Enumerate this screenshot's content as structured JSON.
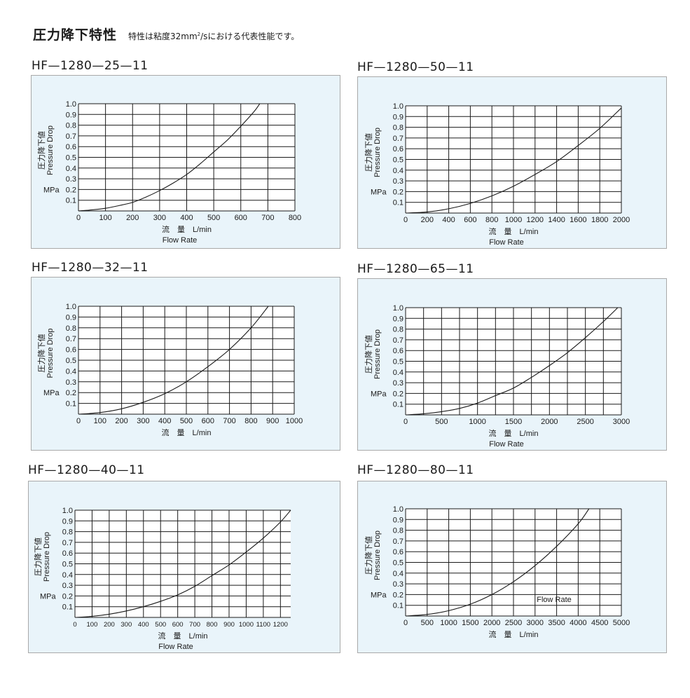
{
  "header": {
    "title": "圧力降下特性",
    "subtitle_pre": "特性は粘度32mm",
    "subtitle_sup": "2",
    "subtitle_post": "/sにおける代表性能です。"
  },
  "chart_data": [
    {
      "type": "line",
      "title": "HF—1280—25—11",
      "xlabel_jp": "流　量　L/min",
      "xlabel_en": "Flow Rate",
      "ylabel_jp": "圧力降下値",
      "ylabel_en": "Pressure Drop",
      "yunit": "MPa",
      "xlim": [
        0,
        800
      ],
      "ylim": [
        0,
        1.0
      ],
      "xticks": [
        0,
        100,
        200,
        300,
        400,
        500,
        600,
        700,
        800
      ],
      "xtick_labels": [
        "0",
        "100",
        "200",
        "300",
        "400",
        "500",
        "600",
        "700",
        "800"
      ],
      "yticks": [
        0.1,
        0.2,
        0.3,
        0.4,
        0.5,
        0.6,
        0.7,
        0.8,
        0.9,
        1.0
      ],
      "ytick_labels": [
        "0.1",
        "0.2",
        "0.3",
        "0.4",
        "0.5",
        "0.6",
        "0.7",
        "0.8",
        "0.9",
        "1.0"
      ],
      "x_grid": [
        0,
        100,
        200,
        300,
        400,
        500,
        600,
        700,
        800
      ],
      "series": [
        {
          "x": [
            0,
            50,
            100,
            150,
            200,
            250,
            300,
            350,
            400,
            450,
            500,
            550,
            600,
            650,
            670
          ],
          "y": [
            0,
            0.01,
            0.025,
            0.05,
            0.08,
            0.13,
            0.19,
            0.26,
            0.34,
            0.44,
            0.55,
            0.66,
            0.79,
            0.93,
            1.0
          ]
        }
      ]
    },
    {
      "type": "line",
      "title": "HF—1280—50—11",
      "xlabel_jp": "流　量　L/min",
      "xlabel_en": "Flow Rate",
      "ylabel_jp": "圧力降下値",
      "ylabel_en": "Pressure Drop",
      "yunit": "MPa",
      "xlim": [
        0,
        2000
      ],
      "ylim": [
        0,
        1.0
      ],
      "xticks": [
        0,
        200,
        400,
        600,
        800,
        1000,
        1200,
        1400,
        1600,
        1800,
        2000
      ],
      "xtick_labels": [
        "0",
        "200",
        "400",
        "600",
        "800",
        "1000",
        "1200",
        "1400",
        "1600",
        "1800",
        "2000"
      ],
      "yticks": [
        0.1,
        0.2,
        0.3,
        0.4,
        0.5,
        0.6,
        0.7,
        0.8,
        0.9,
        1.0
      ],
      "ytick_labels": [
        "0.1",
        "0.2",
        "0.3",
        "0.4",
        "0.5",
        "0.6",
        "0.7",
        "0.8",
        "0.9",
        "1.0"
      ],
      "x_grid": [
        0,
        200,
        400,
        600,
        800,
        1000,
        1200,
        1400,
        1600,
        1800,
        2000
      ],
      "series": [
        {
          "x": [
            0,
            200,
            400,
            600,
            800,
            1000,
            1200,
            1400,
            1600,
            1800,
            2000
          ],
          "y": [
            0,
            0.01,
            0.04,
            0.09,
            0.16,
            0.25,
            0.36,
            0.48,
            0.63,
            0.79,
            0.98
          ]
        }
      ]
    },
    {
      "type": "line",
      "title": "HF—1280—32—11",
      "xlabel_jp": "流　量　L/min",
      "xlabel_en": "",
      "ylabel_jp": "圧力降下値",
      "ylabel_en": "Pressure Drop",
      "yunit": "MPa",
      "xlim": [
        0,
        1000
      ],
      "ylim": [
        0,
        1.0
      ],
      "xticks": [
        0,
        100,
        200,
        300,
        400,
        500,
        600,
        700,
        800,
        900,
        1000
      ],
      "xtick_labels": [
        "0",
        "100",
        "200",
        "300",
        "400",
        "500",
        "600",
        "700",
        "800",
        "900",
        "1000"
      ],
      "yticks": [
        0.1,
        0.2,
        0.3,
        0.4,
        0.5,
        0.6,
        0.7,
        0.8,
        0.9,
        1.0
      ],
      "ytick_labels": [
        "0.1",
        "0.2",
        "0.3",
        "0.4",
        "0.5",
        "0.6",
        "0.7",
        "0.8",
        "0.9",
        "1.0"
      ],
      "x_grid": [
        0,
        100,
        200,
        300,
        400,
        500,
        600,
        700,
        800,
        900,
        1000
      ],
      "series": [
        {
          "x": [
            0,
            100,
            200,
            300,
            400,
            500,
            600,
            700,
            800,
            880
          ],
          "y": [
            0,
            0.015,
            0.05,
            0.11,
            0.19,
            0.3,
            0.44,
            0.6,
            0.8,
            1.0
          ]
        }
      ]
    },
    {
      "type": "line",
      "title": "HF—1280—65—11",
      "xlabel_jp": "流　量　L/min",
      "xlabel_en": "Flow Rate",
      "ylabel_jp": "圧力降下値",
      "ylabel_en": "Pressure Drop",
      "yunit": "MPa",
      "xlim": [
        0,
        3000
      ],
      "ylim": [
        0,
        1.0
      ],
      "xticks": [
        0,
        500,
        1000,
        1500,
        2000,
        2500,
        3000
      ],
      "xtick_labels": [
        "0",
        "500",
        "1000",
        "1500",
        "2000",
        "2500",
        "3000"
      ],
      "yticks": [
        0.1,
        0.2,
        0.3,
        0.4,
        0.5,
        0.6,
        0.7,
        0.8,
        0.9,
        1.0
      ],
      "ytick_labels": [
        "0.1",
        "0.2",
        "0.3",
        "0.4",
        "0.5",
        "0.6",
        "0.7",
        "0.8",
        "0.9",
        "1.0"
      ],
      "x_grid": [
        0,
        250,
        500,
        750,
        1000,
        1250,
        1500,
        1750,
        2000,
        2250,
        2500,
        2750,
        3000
      ],
      "series": [
        {
          "x": [
            0,
            250,
            500,
            750,
            1000,
            1250,
            1500,
            1750,
            2000,
            2250,
            2500,
            2750,
            2950
          ],
          "y": [
            0,
            0.01,
            0.03,
            0.06,
            0.11,
            0.18,
            0.25,
            0.35,
            0.46,
            0.58,
            0.72,
            0.87,
            1.0
          ]
        }
      ]
    },
    {
      "type": "line",
      "title": "HF—1280—40—11",
      "xlabel_jp": "流　量　L/min",
      "xlabel_en": "Flow Rate",
      "ylabel_jp": "圧力降下値",
      "ylabel_en": "Pressure Drop",
      "yunit": "MPa",
      "xlim": [
        0,
        1260
      ],
      "ylim": [
        0,
        1.0
      ],
      "xticks": [
        0,
        100,
        200,
        300,
        400,
        500,
        600,
        700,
        800,
        900,
        1000,
        1100,
        1200
      ],
      "xtick_labels": [
        "0",
        "100",
        "200",
        "300",
        "400",
        "500",
        "600",
        "700",
        "800",
        "900",
        "1000",
        "1100",
        "1200"
      ],
      "yticks": [
        0.1,
        0.2,
        0.3,
        0.4,
        0.5,
        0.6,
        0.7,
        0.8,
        0.9,
        1.0
      ],
      "ytick_labels": [
        "0.1",
        "0.2",
        "0.3",
        "0.4",
        "0.5",
        "0.6",
        "0.7",
        "0.8",
        "0.9",
        "1.0"
      ],
      "x_grid": [
        0,
        100,
        200,
        300,
        400,
        500,
        600,
        700,
        800,
        900,
        1000,
        1100,
        1200
      ],
      "series": [
        {
          "x": [
            0,
            100,
            200,
            300,
            400,
            500,
            600,
            700,
            800,
            900,
            1000,
            1100,
            1200,
            1260
          ],
          "y": [
            0,
            0.01,
            0.03,
            0.06,
            0.1,
            0.15,
            0.21,
            0.29,
            0.39,
            0.49,
            0.61,
            0.74,
            0.89,
            1.0
          ]
        }
      ]
    },
    {
      "type": "line",
      "title": "HF—1280—80—11",
      "xlabel_jp": "流　量　L/min",
      "xlabel_en": "Flow Rate",
      "ylabel_jp": "圧力降下値",
      "ylabel_en": "Pressure Drop",
      "yunit": "MPa",
      "xlim": [
        0,
        5000
      ],
      "ylim": [
        0,
        1.0
      ],
      "xticks": [
        0,
        500,
        1000,
        1500,
        2000,
        2500,
        3000,
        3500,
        4000,
        4500,
        5000
      ],
      "xtick_labels": [
        "0",
        "500",
        "1000",
        "1500",
        "2000",
        "2500",
        "3000",
        "3500",
        "4000",
        "4500",
        "5000"
      ],
      "yticks": [
        0.1,
        0.2,
        0.3,
        0.4,
        0.5,
        0.6,
        0.7,
        0.8,
        0.9,
        1.0
      ],
      "ytick_labels": [
        "0.1",
        "0.2",
        "0.3",
        "0.4",
        "0.5",
        "0.6",
        "0.7",
        "0.8",
        "0.9",
        "1.0"
      ],
      "x_grid": [
        0,
        500,
        1000,
        1500,
        2000,
        2500,
        3000,
        3500,
        4000,
        4500,
        5000
      ],
      "series": [
        {
          "x": [
            0,
            500,
            1000,
            1500,
            2000,
            2500,
            3000,
            3500,
            4000,
            4250
          ],
          "y": [
            0,
            0.015,
            0.05,
            0.11,
            0.2,
            0.32,
            0.47,
            0.65,
            0.86,
            1.0
          ]
        }
      ]
    }
  ]
}
